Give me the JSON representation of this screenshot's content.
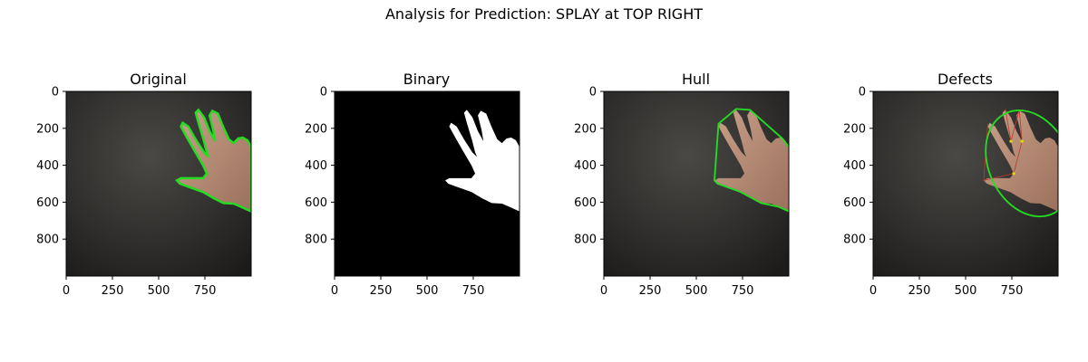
{
  "figure": {
    "suptitle": "Analysis for Prediction: SPLAY at TOP RIGHT"
  },
  "colors": {
    "background_dark": "#2e2e2c",
    "hand_skin": "#b08a72",
    "contour_green": "#22dd22",
    "binary_white": "#ffffff",
    "binary_black": "#000000",
    "defect_red": "#c0392b",
    "defect_yellow": "#dddd00"
  },
  "chart_data": [
    {
      "type": "image",
      "title": "Original",
      "xlim": [
        0,
        1000
      ],
      "ylim": [
        1000,
        0
      ],
      "xticks": [
        0,
        250,
        500,
        750
      ],
      "yticks": [
        0,
        200,
        400,
        600,
        800
      ],
      "overlay": "contour",
      "overlay_color": "#22dd22"
    },
    {
      "type": "image",
      "title": "Binary",
      "xlim": [
        0,
        1000
      ],
      "ylim": [
        1000,
        0
      ],
      "xticks": [
        0,
        250,
        500,
        750
      ],
      "yticks": [
        0,
        200,
        400,
        600,
        800
      ],
      "overlay": "mask"
    },
    {
      "type": "image",
      "title": "Hull",
      "xlim": [
        0,
        1000
      ],
      "ylim": [
        1000,
        0
      ],
      "xticks": [
        0,
        250,
        500,
        750
      ],
      "yticks": [
        0,
        200,
        400,
        600,
        800
      ],
      "overlay": "hull",
      "overlay_color": "#22dd22"
    },
    {
      "type": "image",
      "title": "Defects",
      "xlim": [
        0,
        1000
      ],
      "ylim": [
        1000,
        0
      ],
      "xticks": [
        0,
        250,
        500,
        750
      ],
      "yticks": [
        0,
        200,
        400,
        600,
        800
      ],
      "overlay": "ellipse",
      "overlay_color": "#22dd22"
    }
  ]
}
